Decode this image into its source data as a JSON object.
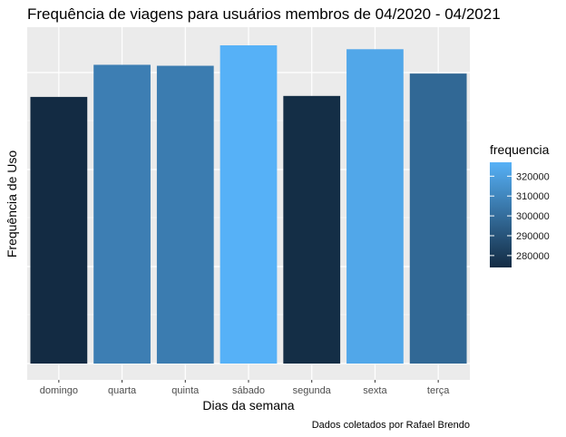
{
  "chart_data": {
    "type": "bar",
    "title": "Frequência de viagens para usuários membros de 04/2020 - 04/2021",
    "xlabel": "Dias da semana",
    "ylabel": "Frequência de Uso",
    "caption": "Dados coletados por Rafael Brendo",
    "categories": [
      "domingo",
      "quarta",
      "quinta",
      "sábado",
      "segunda",
      "sexta",
      "terça"
    ],
    "values": [
      274000,
      307000,
      306000,
      327000,
      275000,
      323000,
      298000
    ],
    "ylim": [
      0,
      327000
    ],
    "y_ticks_shown": false,
    "grid": true,
    "legend": {
      "title": "frequencia",
      "placement": "right",
      "labels": [
        "320000",
        "310000",
        "300000",
        "290000",
        "280000"
      ],
      "values": [
        320000,
        310000,
        300000,
        290000,
        280000
      ],
      "range": [
        274000,
        327000
      ],
      "color_low": "#132B43",
      "color_high": "#56B1F7"
    },
    "panel_background": "#EBEBEB",
    "grid_color": "#FFFFFF"
  }
}
